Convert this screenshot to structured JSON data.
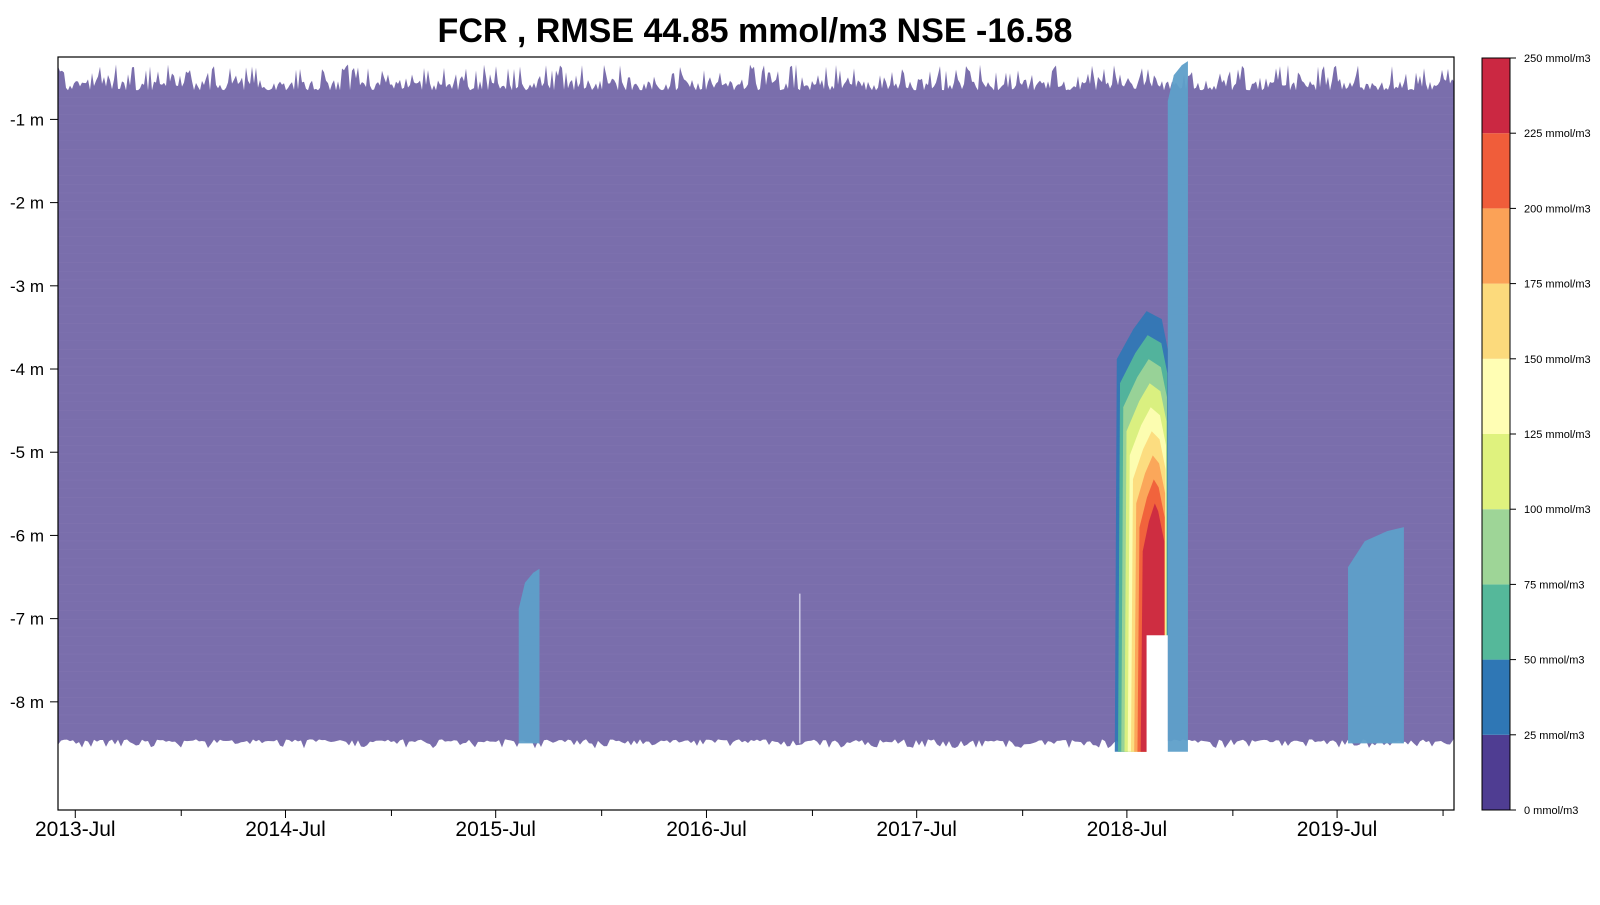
{
  "chart_data": {
    "type": "heatmap",
    "title": "FCR , RMSE 44.85 mmol/m3 NSE -16.58",
    "xlabel": "",
    "ylabel": "",
    "x_ticks": [
      "2013-Jul",
      "2014-Jul",
      "2015-Jul",
      "2016-Jul",
      "2017-Jul",
      "2018-Jul",
      "2019-Jul"
    ],
    "xlim": [
      "2013-06-01",
      "2020-01-20"
    ],
    "y_ticks": [
      {
        "value": -1,
        "label": "-1 m"
      },
      {
        "value": -2,
        "label": "-2 m"
      },
      {
        "value": -3,
        "label": "-3 m"
      },
      {
        "value": -4,
        "label": "-4 m"
      },
      {
        "value": -5,
        "label": "-5 m"
      },
      {
        "value": -6,
        "label": "-6 m"
      },
      {
        "value": -7,
        "label": "-7 m"
      },
      {
        "value": -8,
        "label": "-8 m"
      }
    ],
    "ylim": [
      -9.3,
      -0.25
    ],
    "grid": false,
    "colorbar": {
      "position": "right",
      "unit": "mmol/m3",
      "levels": [
        {
          "label": "0 mmol/m3",
          "from": 0,
          "to": 25,
          "color": "#4F3D92"
        },
        {
          "label": "25 mmol/m3",
          "from": 25,
          "to": 50,
          "color": "#2F77B5"
        },
        {
          "label": "50 mmol/m3",
          "from": 50,
          "to": 75,
          "color": "#55B89A"
        },
        {
          "label": "75 mmol/m3",
          "from": 75,
          "to": 100,
          "color": "#9ED597"
        },
        {
          "label": "100 mmol/m3",
          "from": 100,
          "to": 125,
          "color": "#DFF27E"
        },
        {
          "label": "125 mmol/m3",
          "from": 125,
          "to": 150,
          "color": "#FFFEB4"
        },
        {
          "label": "150 mmol/m3",
          "from": 150,
          "to": 175,
          "color": "#FCDA7C"
        },
        {
          "label": "175 mmol/m3",
          "from": 175,
          "to": 200,
          "color": "#FBA257"
        },
        {
          "label": "200 mmol/m3",
          "from": 200,
          "to": 225,
          "color": "#F05D3A"
        },
        {
          "label": "225 mmol/m3",
          "from": 225,
          "to": 250,
          "color": "#CB2842"
        },
        {
          "label": "250 mmol/m3"
        }
      ]
    },
    "background_level": "0-25 mmol/m3",
    "regions": [
      {
        "name": "2015 low-level band",
        "x_start": "2015-08-10",
        "x_end": "2015-09-15",
        "depth_top_m": -6.4,
        "depth_bottom_m": -8.5,
        "level": "25-50 mmol/m3",
        "color": "#5E9FC9"
      },
      {
        "name": "2016 trace",
        "x": "2016-12-10",
        "depth_top_m": -6.7,
        "depth_bottom_m": -8.5,
        "color": "#C7C4E2"
      },
      {
        "name": "2018 surface-to-bottom column",
        "x_start": "2018-09-10",
        "x_end": "2018-10-15",
        "depth_top_m": -0.3,
        "depth_bottom_m": -8.6,
        "level": "25-50 mmol/m3",
        "color": "#5E9FC9"
      },
      {
        "name": "2018 hypolimnion peak",
        "x_start": "2018-06-10",
        "x_end": "2018-09-10",
        "depth_top_m": -3.4,
        "depth_bottom_m": -8.6,
        "max_level": "225-250 mmol/m3"
      },
      {
        "name": "2019 low-level band",
        "x_start": "2019-07-20",
        "x_end": "2019-10-25",
        "depth_top_m": -5.9,
        "depth_bottom_m": -8.5,
        "level": "25-50 mmol/m3",
        "color": "#5E9FC9"
      }
    ]
  }
}
